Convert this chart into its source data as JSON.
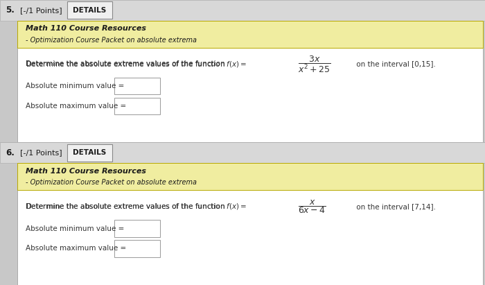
{
  "bg_color": "#c8c8c8",
  "white_bg": "#ffffff",
  "yellow_color": "#f0eda0",
  "yellow_border_color": "#b8a800",
  "content_border": "#aaaaaa",
  "header_bar_color": "#d8d8d8",
  "header_bar_border": "#b0b0b0",
  "btn_face": "#f0f0f0",
  "btn_border": "#888888",
  "text_dark": "#1a1a1a",
  "text_medium": "#333333",
  "q5": {
    "num_label": "5.",
    "points": "[-/1 Points]",
    "details": "DETAILS",
    "res_title": "Math 110 Course Resources",
    "res_sub": "- Optimization Course Packet on absolute extrema",
    "pre_eq": "Determine the absolute extreme values of the function ",
    "fx_eq": "$f(x) =$",
    "frac_num": "$\\dfrac{3x}{x^2+25}$",
    "post_eq": " on the interval [0,15].",
    "min_label": "Absolute minimum value =",
    "max_label": "Absolute maximum value ="
  },
  "q6": {
    "num_label": "6.",
    "points": "[-/1 Points]",
    "details": "DETAILS",
    "res_title": "Math 110 Course Resources",
    "res_sub": "- Optimization Course Packet on absolute extrema",
    "pre_eq": "Determine the absolute extreme values of the function ",
    "fx_eq": "$f(x) =$",
    "frac_num": "$\\dfrac{x}{6x-4}$",
    "post_eq": " on the interval [7,14].",
    "min_label": "Absolute minimum value =",
    "max_label": "Absolute maximum value ="
  }
}
